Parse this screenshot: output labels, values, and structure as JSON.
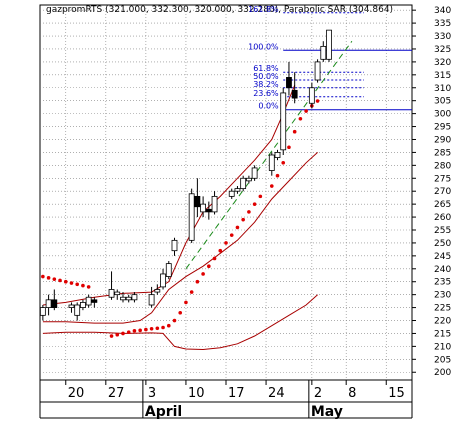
{
  "chart_data": {
    "type": "candlestick",
    "title": "gazpromRTS (321.000, 332.300, 320.000, 332.280), Parabolic SAR (304.864)",
    "ylim": [
      197,
      342
    ],
    "y_ticks": [
      200,
      205,
      210,
      215,
      220,
      225,
      230,
      235,
      240,
      245,
      250,
      255,
      260,
      265,
      270,
      275,
      280,
      285,
      290,
      295,
      300,
      305,
      310,
      315,
      320,
      325,
      330,
      335,
      340
    ],
    "x_ticks": [
      {
        "label": "20",
        "day": 20
      },
      {
        "label": "27",
        "day": 27
      },
      {
        "label": "3",
        "day": 34
      },
      {
        "label": "10",
        "day": 41
      },
      {
        "label": "17",
        "day": 48
      },
      {
        "label": "24",
        "day": 55
      },
      {
        "label": "2",
        "day": 63
      },
      {
        "label": "8",
        "day": 69
      },
      {
        "label": "15",
        "day": 76
      }
    ],
    "months": [
      {
        "label": "April",
        "day": 34
      },
      {
        "label": "May",
        "day": 63
      }
    ],
    "x_range": [
      15.5,
      80.5
    ],
    "candles": [
      {
        "d": 16,
        "o": 222,
        "h": 226,
        "l": 220,
        "c": 225
      },
      {
        "d": 17,
        "o": 225,
        "h": 230,
        "l": 222,
        "c": 228
      },
      {
        "d": 18,
        "o": 228,
        "h": 232,
        "l": 224,
        "c": 225
      },
      {
        "d": 21,
        "o": 225,
        "h": 227,
        "l": 223,
        "c": 226
      },
      {
        "d": 22,
        "o": 222,
        "h": 227,
        "l": 220,
        "c": 226
      },
      {
        "d": 23,
        "o": 225,
        "h": 228,
        "l": 224,
        "c": 227
      },
      {
        "d": 24,
        "o": 226,
        "h": 230,
        "l": 225,
        "c": 229
      },
      {
        "d": 25,
        "o": 228,
        "h": 229,
        "l": 225,
        "c": 227
      },
      {
        "d": 28,
        "o": 229,
        "h": 239,
        "l": 228,
        "c": 232
      },
      {
        "d": 29,
        "o": 230,
        "h": 232,
        "l": 228,
        "c": 231
      },
      {
        "d": 30,
        "o": 228,
        "h": 231,
        "l": 227,
        "c": 229
      },
      {
        "d": 31,
        "o": 228,
        "h": 230,
        "l": 227,
        "c": 229
      },
      {
        "d": 32,
        "o": 228,
        "h": 231,
        "l": 227,
        "c": 230
      },
      {
        "d": 35,
        "o": 226,
        "h": 233,
        "l": 225,
        "c": 230
      },
      {
        "d": 36,
        "o": 231,
        "h": 234,
        "l": 230,
        "c": 232
      },
      {
        "d": 37,
        "o": 233,
        "h": 240,
        "l": 232,
        "c": 238
      },
      {
        "d": 38,
        "o": 237,
        "h": 243,
        "l": 236,
        "c": 242
      },
      {
        "d": 39,
        "o": 247,
        "h": 252,
        "l": 245,
        "c": 251
      },
      {
        "d": 42,
        "o": 251,
        "h": 271,
        "l": 250,
        "c": 269
      },
      {
        "d": 43,
        "o": 268,
        "h": 275,
        "l": 260,
        "c": 264
      },
      {
        "d": 44,
        "o": 262,
        "h": 268,
        "l": 260,
        "c": 265
      },
      {
        "d": 45,
        "o": 263,
        "h": 266,
        "l": 259,
        "c": 262
      },
      {
        "d": 46,
        "o": 262,
        "h": 270,
        "l": 261,
        "c": 268
      },
      {
        "d": 49,
        "o": 268,
        "h": 271,
        "l": 267,
        "c": 270
      },
      {
        "d": 50,
        "o": 270,
        "h": 272,
        "l": 269,
        "c": 271
      },
      {
        "d": 51,
        "o": 271,
        "h": 276,
        "l": 270,
        "c": 275
      },
      {
        "d": 52,
        "o": 274,
        "h": 276,
        "l": 273,
        "c": 275
      },
      {
        "d": 53,
        "o": 275,
        "h": 280,
        "l": 274,
        "c": 279
      },
      {
        "d": 56,
        "o": 278,
        "h": 285,
        "l": 276,
        "c": 284
      },
      {
        "d": 57,
        "o": 283,
        "h": 286,
        "l": 282,
        "c": 285
      },
      {
        "d": 58,
        "o": 286,
        "h": 310,
        "l": 284,
        "c": 308
      },
      {
        "d": 59,
        "o": 314,
        "h": 320,
        "l": 307,
        "c": 310
      },
      {
        "d": 60,
        "o": 309,
        "h": 316,
        "l": 304,
        "c": 306
      },
      {
        "d": 63,
        "o": 304,
        "h": 312,
        "l": 302,
        "c": 310
      },
      {
        "d": 64,
        "o": 313,
        "h": 321,
        "l": 312,
        "c": 320
      },
      {
        "d": 65,
        "o": 321,
        "h": 328,
        "l": 320,
        "c": 326
      },
      {
        "d": 66,
        "o": 321,
        "h": 332.3,
        "l": 320,
        "c": 332.28
      }
    ],
    "sar": [
      [
        16,
        237
      ],
      [
        17,
        236.5
      ],
      [
        18,
        236
      ],
      [
        19,
        235.5
      ],
      [
        20,
        235
      ],
      [
        21,
        234.5
      ],
      [
        22,
        234
      ],
      [
        23,
        233.5
      ],
      [
        24,
        233
      ],
      [
        28,
        214
      ],
      [
        29,
        214.5
      ],
      [
        30,
        215
      ],
      [
        31,
        215.5
      ],
      [
        32,
        216
      ],
      [
        33,
        216.2
      ],
      [
        34,
        216.5
      ],
      [
        35,
        216.8
      ],
      [
        36,
        217
      ],
      [
        37,
        217.3
      ],
      [
        38,
        218
      ],
      [
        39,
        220
      ],
      [
        40,
        223
      ],
      [
        41,
        227
      ],
      [
        42,
        231
      ],
      [
        43,
        235
      ],
      [
        44,
        238
      ],
      [
        45,
        241
      ],
      [
        46,
        244
      ],
      [
        47,
        247
      ],
      [
        48,
        250
      ],
      [
        49,
        253
      ],
      [
        50,
        256
      ],
      [
        51,
        259
      ],
      [
        52,
        262
      ],
      [
        53,
        265
      ],
      [
        54,
        268
      ],
      [
        56,
        272
      ],
      [
        57,
        276
      ],
      [
        58,
        281
      ],
      [
        59,
        287
      ],
      [
        60,
        293
      ],
      [
        61,
        298
      ],
      [
        62,
        301
      ],
      [
        63,
        303
      ],
      [
        64,
        304.864
      ]
    ],
    "band_upper": [
      [
        16,
        226
      ],
      [
        20,
        227
      ],
      [
        25,
        229
      ],
      [
        30,
        230.5
      ],
      [
        35,
        231
      ],
      [
        38,
        235
      ],
      [
        41,
        250
      ],
      [
        44,
        262
      ],
      [
        47,
        268
      ],
      [
        50,
        275
      ],
      [
        53,
        282
      ],
      [
        56,
        290
      ],
      [
        58,
        300
      ],
      [
        60,
        311
      ]
    ],
    "band_lower": [
      [
        16,
        219.5
      ],
      [
        20,
        219.5
      ],
      [
        25,
        219
      ],
      [
        30,
        219
      ],
      [
        33,
        220
      ],
      [
        35,
        223
      ],
      [
        38,
        232
      ],
      [
        41,
        237
      ],
      [
        44,
        241
      ],
      [
        47,
        246
      ],
      [
        50,
        251
      ],
      [
        53,
        258
      ],
      [
        56,
        267
      ],
      [
        59,
        274
      ],
      [
        62,
        281
      ],
      [
        64,
        285
      ]
    ],
    "band_bottom": [
      [
        16,
        215
      ],
      [
        20,
        215.5
      ],
      [
        25,
        215.5
      ],
      [
        30,
        215
      ],
      [
        35,
        215.2
      ],
      [
        37,
        215
      ],
      [
        39,
        210
      ],
      [
        41,
        209
      ],
      [
        44,
        208.8
      ],
      [
        47,
        209.5
      ],
      [
        50,
        211
      ],
      [
        53,
        214
      ],
      [
        56,
        218
      ],
      [
        59,
        222
      ],
      [
        62,
        226
      ],
      [
        64,
        230
      ]
    ],
    "trendline": [
      [
        41,
        240
      ],
      [
        70,
        328
      ]
    ],
    "fibonacci": {
      "start_day": 58,
      "end_day": 70,
      "label_day": 57.2,
      "levels": [
        {
          "label": "161.8%",
          "y": 339
        },
        {
          "label": "100.0%",
          "y": 324.5
        },
        {
          "label": "61.8%",
          "y": 316
        },
        {
          "label": "50.0%",
          "y": 313
        },
        {
          "label": "38.2%",
          "y": 310
        },
        {
          "label": "23.6%",
          "y": 306.5
        },
        {
          "label": "0.0%",
          "y": 301.5
        }
      ]
    },
    "colors": {
      "up": "#ffffff",
      "down": "#000000",
      "sar": "#e00000",
      "band": "#a80000",
      "trend": "#1a8a1a",
      "fib": "#0000c8",
      "axis": "#000000"
    }
  }
}
